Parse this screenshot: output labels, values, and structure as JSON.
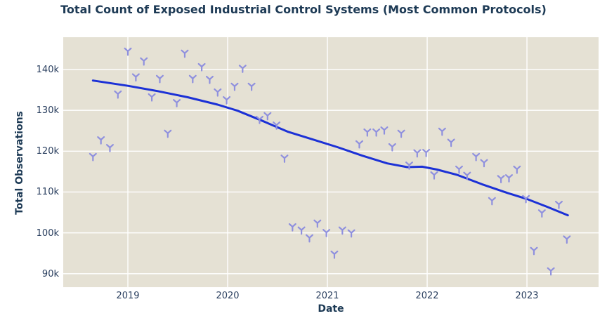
{
  "header": {
    "title": "Total Count of Exposed Industrial Control Systems (Most Common Protocols)"
  },
  "colors": {
    "page_background": "#ffffff",
    "plot_background": "#e5e1d4",
    "gridline": "#ffffff",
    "marker": "#8f90de",
    "trend_line": "#1c31d6",
    "title_text": "#1d3a55",
    "tick_text": "#2a3f5f"
  },
  "chart_data": {
    "type": "scatter",
    "title": "Total Count of Exposed Industrial Control Systems (Most Common Protocols)",
    "xlabel": "Date",
    "ylabel": "Total Observations",
    "units": "thousands of observations; values below are in k",
    "grid": true,
    "legend": "none",
    "marker_symbol": "y-shape (two arms up, stem down)",
    "xlim": [
      2018.352,
      2023.718
    ],
    "ylim": [
      86.7,
      147.9
    ],
    "x_ticks": [
      2019,
      2020,
      2021,
      2022,
      2023
    ],
    "x_tick_labels": [
      "2019",
      "2020",
      "2021",
      "2022",
      "2023"
    ],
    "y_ticks": [
      90,
      100,
      110,
      120,
      130,
      140
    ],
    "y_tick_labels": [
      "90k",
      "100k",
      "110k",
      "120k",
      "130k",
      "140k"
    ],
    "series": [
      {
        "name": "monthly-observations",
        "kind": "scatter",
        "color": "#8f90de",
        "points": [
          [
            2018.65,
            118.7
          ],
          [
            2018.73,
            122.8
          ],
          [
            2018.82,
            120.9
          ],
          [
            2018.9,
            134.0
          ],
          [
            2019.0,
            144.5
          ],
          [
            2019.08,
            138.2
          ],
          [
            2019.16,
            142.1
          ],
          [
            2019.24,
            133.3
          ],
          [
            2019.32,
            137.8
          ],
          [
            2019.4,
            124.4
          ],
          [
            2019.49,
            131.9
          ],
          [
            2019.57,
            144.0
          ],
          [
            2019.65,
            137.8
          ],
          [
            2019.74,
            140.7
          ],
          [
            2019.82,
            137.6
          ],
          [
            2019.9,
            134.5
          ],
          [
            2019.99,
            132.6
          ],
          [
            2020.07,
            135.9
          ],
          [
            2020.15,
            140.3
          ],
          [
            2020.24,
            135.9
          ],
          [
            2020.32,
            127.8
          ],
          [
            2020.4,
            128.7
          ],
          [
            2020.49,
            126.4
          ],
          [
            2020.57,
            118.3
          ],
          [
            2020.65,
            101.5
          ],
          [
            2020.74,
            100.7
          ],
          [
            2020.82,
            98.8
          ],
          [
            2020.9,
            102.4
          ],
          [
            2020.99,
            100.1
          ],
          [
            2021.07,
            94.8
          ],
          [
            2021.15,
            100.7
          ],
          [
            2021.24,
            100.0
          ],
          [
            2021.32,
            121.8
          ],
          [
            2021.4,
            124.7
          ],
          [
            2021.49,
            124.7
          ],
          [
            2021.57,
            125.2
          ],
          [
            2021.65,
            121.1
          ],
          [
            2021.74,
            124.4
          ],
          [
            2021.82,
            116.6
          ],
          [
            2021.9,
            119.6
          ],
          [
            2021.99,
            119.7
          ],
          [
            2022.07,
            114.2
          ],
          [
            2022.15,
            124.9
          ],
          [
            2022.24,
            122.2
          ],
          [
            2022.32,
            115.6
          ],
          [
            2022.4,
            114.1
          ],
          [
            2022.49,
            118.7
          ],
          [
            2022.57,
            117.2
          ],
          [
            2022.65,
            107.9
          ],
          [
            2022.74,
            113.3
          ],
          [
            2022.82,
            113.5
          ],
          [
            2022.9,
            115.6
          ],
          [
            2022.99,
            108.4
          ],
          [
            2023.07,
            95.7
          ],
          [
            2023.15,
            104.9
          ],
          [
            2023.24,
            90.7
          ],
          [
            2023.32,
            107.0
          ],
          [
            2023.4,
            98.5
          ]
        ]
      },
      {
        "name": "lowess-trend",
        "kind": "line",
        "color": "#1c31d6",
        "points": [
          [
            2018.65,
            137.3
          ],
          [
            2019.0,
            136.0
          ],
          [
            2019.3,
            134.7
          ],
          [
            2019.6,
            133.2
          ],
          [
            2019.9,
            131.4
          ],
          [
            2020.1,
            129.9
          ],
          [
            2020.35,
            127.4
          ],
          [
            2020.6,
            124.8
          ],
          [
            2020.85,
            122.9
          ],
          [
            2021.1,
            121.0
          ],
          [
            2021.35,
            118.9
          ],
          [
            2021.6,
            117.0
          ],
          [
            2021.8,
            116.1
          ],
          [
            2021.95,
            116.2
          ],
          [
            2022.1,
            115.5
          ],
          [
            2022.3,
            114.2
          ],
          [
            2022.55,
            111.9
          ],
          [
            2022.8,
            109.8
          ],
          [
            2023.0,
            108.3
          ],
          [
            2023.2,
            106.4
          ],
          [
            2023.41,
            104.3
          ]
        ]
      }
    ]
  }
}
